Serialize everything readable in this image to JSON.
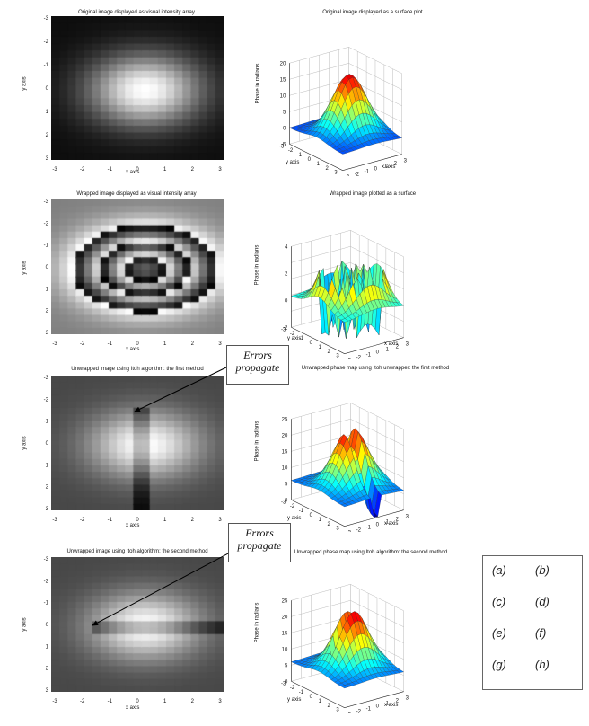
{
  "chart_data": [
    {
      "panel": "a",
      "type": "heatmap",
      "title": "Original image displayed as visual intensity array",
      "xlabel": "x axis",
      "ylabel": "y axis",
      "xticks": [
        "-3",
        "-2",
        "-1",
        "0",
        "1",
        "2",
        "3"
      ],
      "yticks": [
        "-3",
        "-2",
        "-1",
        "0",
        "1",
        "2",
        "3"
      ],
      "xlim": [
        -3.14,
        3.14
      ],
      "ylim": [
        -3.14,
        3.14
      ],
      "colormap": "gray",
      "data_description_values": {
        "function": "gaussian",
        "peak": [
          0.3,
          0.2
        ]
      }
    },
    {
      "panel": "b",
      "type": "surface",
      "title": "Original image displayed as a surface plot",
      "xlabel": "x axis",
      "ylabel": "y axis",
      "zlabel": "Phase in radians",
      "zticks": [
        "-5",
        "0",
        "5",
        "10",
        "15",
        "20"
      ],
      "zlim": [
        -5,
        20
      ],
      "xticks": [
        "-3",
        "-2",
        "-1",
        "0",
        "1",
        "2",
        "3"
      ],
      "yticks": [
        "-3",
        "-2",
        "-1",
        "0",
        "1",
        "2",
        "3"
      ],
      "colormap": "jet"
    },
    {
      "panel": "c",
      "type": "heatmap",
      "title": "Wrapped image displayed as visual intensity array",
      "xlabel": "x axis",
      "ylabel": "y axis",
      "xticks": [
        "-3",
        "-2",
        "-1",
        "0",
        "1",
        "2",
        "3"
      ],
      "yticks": [
        "-3",
        "-2",
        "-1",
        "0",
        "1",
        "2",
        "3"
      ],
      "xlim": [
        -3.14,
        3.14
      ],
      "ylim": [
        -3.14,
        3.14
      ],
      "colormap": "gray"
    },
    {
      "panel": "d",
      "type": "surface",
      "title": "Wrapped image plotted as a surface",
      "xlabel": "x axis",
      "ylabel": "y axis",
      "zlabel": "Phase in radians",
      "zticks": [
        "-2",
        "0",
        "2",
        "4"
      ],
      "zlim": [
        -3.14,
        3.14
      ],
      "xticks": [
        "-3",
        "-2",
        "-1",
        "0",
        "1",
        "2",
        "3"
      ],
      "yticks": [
        "-3",
        "-2",
        "-1",
        "0",
        "1",
        "2",
        "3"
      ],
      "colormap": "jet"
    },
    {
      "panel": "e",
      "type": "heatmap",
      "title": "Unwrapped image using Itoh algorithm: the first method",
      "xlabel": "x axis",
      "ylabel": "y axis",
      "xticks": [
        "-3",
        "-2",
        "-1",
        "0",
        "1",
        "2",
        "3"
      ],
      "yticks": [
        "-3",
        "-2",
        "-1",
        "0",
        "1",
        "2",
        "3"
      ],
      "xlim": [
        -3.14,
        3.14
      ],
      "ylim": [
        -3.14,
        3.14
      ],
      "colormap": "gray"
    },
    {
      "panel": "f",
      "type": "surface",
      "title": "Unwrapped phase map using Itoh unwrapper: the first method",
      "xlabel": "x axis",
      "ylabel": "y axis",
      "zlabel": "Phase in radians",
      "zticks": [
        "0",
        "5",
        "10",
        "15",
        "20",
        "25"
      ],
      "zlim": [
        0,
        25
      ],
      "xticks": [
        "-3",
        "-2",
        "-1",
        "0",
        "1",
        "2",
        "3"
      ],
      "yticks": [
        "-3",
        "-2",
        "-1",
        "0",
        "1",
        "2",
        "3"
      ],
      "colormap": "jet"
    },
    {
      "panel": "g",
      "type": "heatmap",
      "title": "Unwrapped image using Itoh algorithm: the second method",
      "xlabel": "x axis",
      "ylabel": "y axis",
      "xticks": [
        "-3",
        "-2",
        "-1",
        "0",
        "1",
        "2",
        "3"
      ],
      "yticks": [
        "-3",
        "-2",
        "-1",
        "0",
        "1",
        "2",
        "3"
      ],
      "xlim": [
        -3.14,
        3.14
      ],
      "ylim": [
        -3.14,
        3.14
      ],
      "colormap": "gray"
    },
    {
      "panel": "h",
      "type": "surface",
      "title": "Unwrapped phase map using Itoh algorithm: the second method",
      "xlabel": "x axis",
      "ylabel": "y axis",
      "zlabel": "Phase in radians",
      "zticks": [
        "0",
        "5",
        "10",
        "15",
        "20",
        "25"
      ],
      "zlim": [
        0,
        25
      ],
      "xticks": [
        "-3",
        "-2",
        "-1",
        "0",
        "1",
        "2",
        "3"
      ],
      "yticks": [
        "-3",
        "-2",
        "-1",
        "0",
        "1",
        "2",
        "3"
      ],
      "colormap": "jet"
    }
  ],
  "callouts": [
    {
      "line1": "Errors",
      "line2": "propagate"
    },
    {
      "line1": "Errors",
      "line2": "propagate"
    }
  ],
  "legend": {
    "labels": [
      "(a)",
      "(b)",
      "(c)",
      "(d)",
      "(e)",
      "(f)",
      "(g)",
      "(h)"
    ]
  },
  "colors": {
    "callout_arrow": "#000000",
    "border": "#666666"
  }
}
